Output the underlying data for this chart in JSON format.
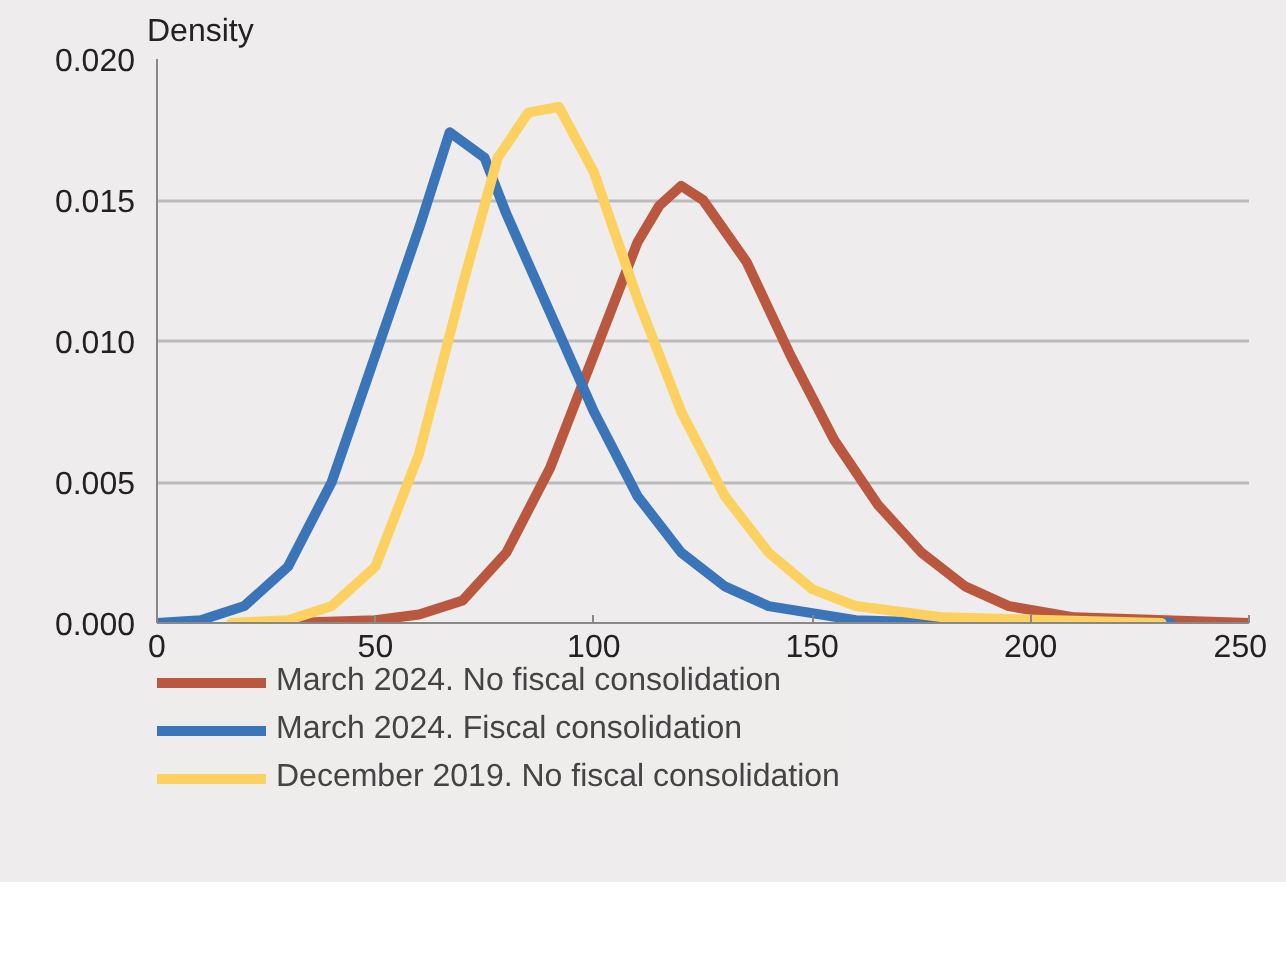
{
  "chart_data": {
    "type": "line",
    "ylabel": "Density",
    "xlim": [
      0,
      250
    ],
    "ylim": [
      0,
      0.02
    ],
    "xticks": [
      0,
      50,
      100,
      150,
      200,
      250
    ],
    "yticks": [
      {
        "value": 0,
        "label": "0.000"
      },
      {
        "value": 0.005,
        "label": "0.005"
      },
      {
        "value": 0.01,
        "label": "0.010"
      },
      {
        "value": 0.015,
        "label": "0.015"
      },
      {
        "value": 0.02,
        "label": "0.020"
      }
    ],
    "grid": "y",
    "legend": "bottom",
    "marker": "none",
    "line_style": "solid",
    "series": [
      {
        "name": "March 2024. No fiscal consolidation",
        "color": "#b9573f",
        "x": [
          30,
          50,
          60,
          70,
          80,
          90,
          100,
          110,
          115,
          120,
          125,
          135,
          145,
          155,
          165,
          175,
          185,
          195,
          210,
          250
        ],
        "values": [
          0,
          0.0001,
          0.0003,
          0.0008,
          0.0025,
          0.0055,
          0.0095,
          0.0135,
          0.0148,
          0.0155,
          0.015,
          0.0128,
          0.0095,
          0.0065,
          0.0042,
          0.0025,
          0.0013,
          0.0006,
          0.0002,
          0
        ]
      },
      {
        "name": "March 2024. Fiscal consolidation",
        "color": "#3a74b9",
        "x": [
          0,
          10,
          20,
          30,
          40,
          50,
          60,
          67,
          75,
          80,
          90,
          100,
          110,
          120,
          130,
          140,
          160,
          180,
          232
        ],
        "values": [
          0,
          0.0001,
          0.0006,
          0.002,
          0.005,
          0.0095,
          0.014,
          0.0174,
          0.0165,
          0.0145,
          0.011,
          0.0075,
          0.0045,
          0.0025,
          0.0013,
          0.0006,
          0.0001,
          0,
          0
        ]
      },
      {
        "name": "December 2019. No fiscal consolidation",
        "color": "#fdd160",
        "x": [
          17,
          30,
          40,
          50,
          60,
          70,
          78,
          85,
          92,
          100,
          110,
          120,
          130,
          140,
          150,
          160,
          180,
          230
        ],
        "values": [
          0,
          0.0001,
          0.0006,
          0.002,
          0.006,
          0.012,
          0.0165,
          0.0181,
          0.0183,
          0.016,
          0.0115,
          0.0075,
          0.0045,
          0.0025,
          0.0012,
          0.0006,
          0.0002,
          0
        ]
      }
    ]
  }
}
